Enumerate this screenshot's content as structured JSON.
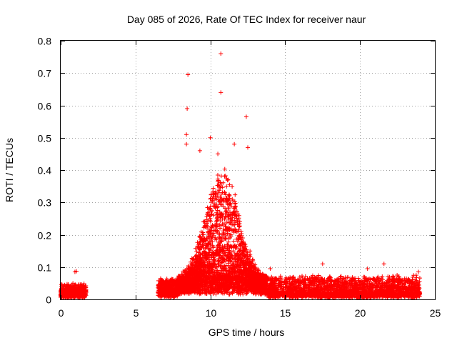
{
  "chart_data": {
    "type": "scatter",
    "title": "Day 085 of 2026, Rate Of TEC Index for receiver naur",
    "xlabel": "GPS time / hours",
    "ylabel": "ROTI / TECUs",
    "xlim": [
      0,
      25
    ],
    "ylim": [
      0,
      0.8
    ],
    "xticks": [
      0,
      5,
      10,
      15,
      20,
      25
    ],
    "yticks": [
      0,
      0.1,
      0.2,
      0.3,
      0.4,
      0.5,
      0.6,
      0.7,
      0.8
    ],
    "xtick_labels": [
      "0",
      "5",
      "10",
      "15",
      "20",
      "25"
    ],
    "ytick_labels": [
      "0",
      "0.1",
      "0.2",
      "0.3",
      "0.4",
      "0.5",
      "0.6",
      "0.7",
      "0.8"
    ],
    "grid": true,
    "marker": "+",
    "color": "#ff0000",
    "outliers": [
      {
        "x": 8.5,
        "y": 0.695
      },
      {
        "x": 8.45,
        "y": 0.59
      },
      {
        "x": 8.4,
        "y": 0.51
      },
      {
        "x": 8.4,
        "y": 0.48
      },
      {
        "x": 10.0,
        "y": 0.5
      },
      {
        "x": 10.7,
        "y": 0.76
      },
      {
        "x": 10.7,
        "y": 0.64
      },
      {
        "x": 12.4,
        "y": 0.565
      },
      {
        "x": 12.5,
        "y": 0.47
      },
      {
        "x": 9.3,
        "y": 0.46
      },
      {
        "x": 10.5,
        "y": 0.45
      },
      {
        "x": 11.6,
        "y": 0.48
      },
      {
        "x": 0.95,
        "y": 0.085
      },
      {
        "x": 1.05,
        "y": 0.087
      },
      {
        "x": 17.5,
        "y": 0.11
      },
      {
        "x": 20.5,
        "y": 0.095
      },
      {
        "x": 21.6,
        "y": 0.11
      },
      {
        "x": 23.9,
        "y": 0.085
      },
      {
        "x": 14.0,
        "y": 0.095
      }
    ],
    "segments": [
      {
        "x_start": 0.0,
        "x_end": 1.7,
        "count": 700,
        "base": 0.018,
        "spread": 0.02
      },
      {
        "x_start": 6.5,
        "x_end": 7.8,
        "count": 450,
        "base": 0.02,
        "spread": 0.03
      },
      {
        "x_start": 7.8,
        "x_end": 13.8,
        "count": 3200,
        "base": 0.05,
        "spread": 0.25
      },
      {
        "x_start": 13.8,
        "x_end": 24.0,
        "count": 2400,
        "base": 0.015,
        "spread": 0.04
      }
    ]
  }
}
